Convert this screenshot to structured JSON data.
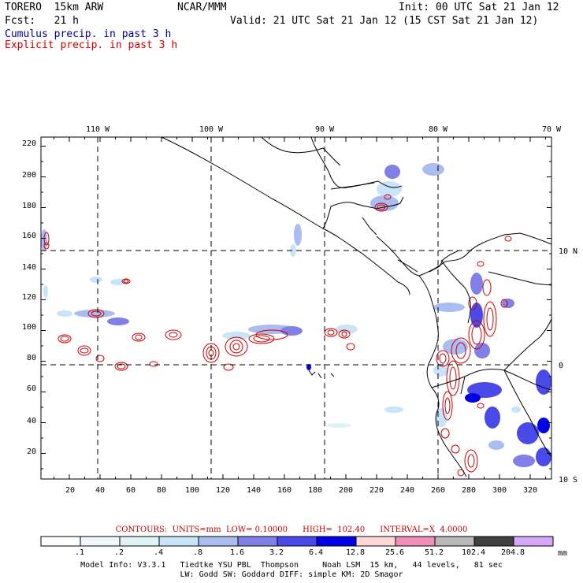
{
  "header": {
    "model": "TORERO  15km ARW",
    "org": "NCAR/MMM",
    "init": "Init: 00 UTC Sat 21 Jan 12",
    "fcst": "Fcst:   21 h",
    "valid": "Valid: 21 UTC Sat 21 Jan 12 (15 CST Sat 21 Jan 12)",
    "field1": "Cumulus precip. in past 3 h",
    "field2": "Explicit precip. in past 3 h",
    "field1_color": "#00008b",
    "field2_color": "#cc0000"
  },
  "map": {
    "top_lon_labels": [
      "110 W",
      "100 W",
      "90 W",
      "80 W",
      "70 W"
    ],
    "right_lat_labels": [
      "10 N",
      "0",
      "10 S"
    ],
    "left_y_ticks": [
      "20",
      "40",
      "60",
      "80",
      "100",
      "120",
      "140",
      "160",
      "180",
      "200",
      "220"
    ],
    "bottom_x_ticks": [
      "20",
      "40",
      "60",
      "80",
      "100",
      "120",
      "140",
      "160",
      "180",
      "200",
      "220",
      "240",
      "260",
      "280",
      "300",
      "320"
    ]
  },
  "contour_info": {
    "contours": "CONTOURS:  UNITS=mm  LOW= 0.10000",
    "high": "HIGH=  102.40",
    "interval": "INTERVAL=X  4.0000"
  },
  "colorbar": {
    "labels": [
      ".1",
      ".2",
      ".4",
      ".8",
      "1.6",
      "3.2",
      "6.4",
      "12.8",
      "25.6",
      "51.2",
      "102.4",
      "204.8"
    ],
    "unit": "mm",
    "colors": [
      "#ffffff",
      "#f0f8ff",
      "#e0f4f8",
      "#c8e4f8",
      "#aabcf0",
      "#8080e8",
      "#4a4ae8",
      "#0000e6",
      "#ffd8d8",
      "#f090b8",
      "#b8b8b8",
      "#404040",
      "#d8a8f8"
    ]
  },
  "model_info": {
    "line1": "Model Info: V3.3.1   Tiedtke YSU PBL  Thompson     Noah LSM  15 km,   44 levels,   81 sec",
    "line2": "LW: Godd SW: Goddard DIFF: simple KM: 2D Smagor"
  }
}
